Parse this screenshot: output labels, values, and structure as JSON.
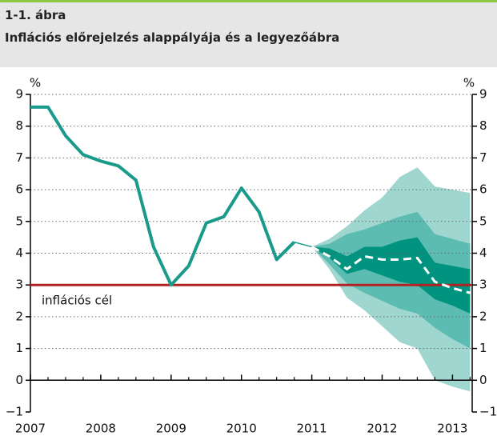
{
  "chart_data": {
    "type": "line",
    "figure_label": "1-1. ábra",
    "title": "Inflációs előrejelzés alappályája és a legyezőábra",
    "y_unit_left": "%",
    "y_unit_right": "%",
    "xlim": [
      2007,
      2013.28
    ],
    "xticks": [
      2007,
      2008,
      2009,
      2010,
      2011,
      2012,
      2013
    ],
    "ylim": [
      -1,
      9
    ],
    "yticks": [
      {
        "value": -1,
        "label": "−1"
      },
      0,
      1,
      2,
      3,
      4,
      5,
      6,
      7,
      8,
      9
    ],
    "grid": true,
    "fan_x": [
      2011,
      2011.25,
      2011.5,
      2011.75,
      2012,
      2012.25,
      2012.5,
      2012.75,
      2013,
      2013.25
    ],
    "fan": [
      {
        "color": "#9fd6d0",
        "upper": [
          4.2,
          4.45,
          4.85,
          5.35,
          5.75,
          6.4,
          6.7,
          6.1,
          6.0,
          5.9
        ],
        "lower": [
          4.2,
          3.5,
          2.6,
          2.2,
          1.7,
          1.2,
          1.0,
          0.0,
          -0.2,
          -0.35
        ]
      },
      {
        "color": "#5cbcb1",
        "upper": [
          4.2,
          4.3,
          4.6,
          4.75,
          4.95,
          5.15,
          5.3,
          4.6,
          4.45,
          4.3
        ],
        "lower": [
          4.2,
          3.65,
          3.05,
          2.75,
          2.5,
          2.25,
          2.1,
          1.65,
          1.3,
          1.0
        ]
      },
      {
        "color": "#00937f",
        "upper": [
          4.2,
          4.15,
          3.9,
          4.2,
          4.2,
          4.4,
          4.5,
          3.7,
          3.6,
          3.5
        ],
        "lower": [
          4.2,
          3.85,
          3.35,
          3.5,
          3.3,
          3.1,
          3.0,
          2.55,
          2.35,
          2.1
        ]
      }
    ],
    "series": [
      {
        "color": "#1a9a8a",
        "width": 4,
        "x": [
          2007,
          2007.25,
          2007.5,
          2007.75,
          2008,
          2008.25,
          2008.5,
          2008.75,
          2009,
          2009.25,
          2009.5,
          2009.75,
          2010,
          2010.25,
          2010.5,
          2010.75
        ],
        "values": [
          8.6,
          8.6,
          7.7,
          7.1,
          6.9,
          6.75,
          6.3,
          4.2,
          3.0,
          3.6,
          4.95,
          5.15,
          6.05,
          5.3,
          3.8,
          4.35
        ]
      },
      {
        "color": "#1a9a8a",
        "width": 1.5,
        "x": [
          2010.75,
          2011
        ],
        "values": [
          4.35,
          4.2
        ]
      },
      {
        "color": "#ffffff",
        "width": 3,
        "dashed": true,
        "x": [
          2011,
          2011.25,
          2011.5,
          2011.75,
          2012,
          2012.25,
          2012.5,
          2012.75,
          2013,
          2013.25
        ],
        "values": [
          4.2,
          3.9,
          3.5,
          3.9,
          3.8,
          3.8,
          3.85,
          3.1,
          2.9,
          2.75
        ]
      }
    ],
    "target": {
      "value": 3,
      "color": "#b22222",
      "label": "inflációs cél"
    }
  }
}
